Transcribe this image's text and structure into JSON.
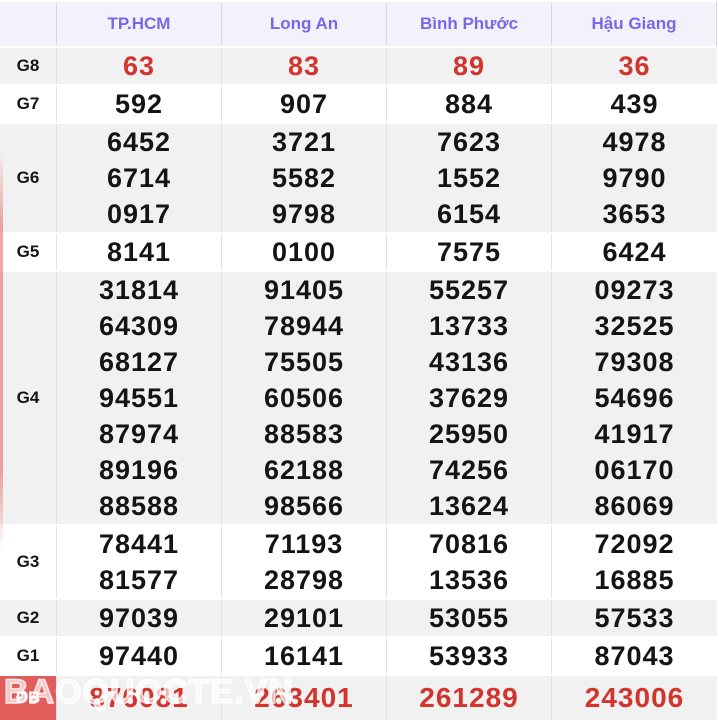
{
  "table": {
    "columns": [
      "TP.HCM",
      "Long An",
      "Bình Phước",
      "Hậu Giang"
    ],
    "rows": [
      {
        "id": "g8",
        "label": "G8",
        "bg": "gray",
        "color": "red",
        "special": false,
        "values": [
          [
            "63"
          ],
          [
            "83"
          ],
          [
            "89"
          ],
          [
            "36"
          ]
        ]
      },
      {
        "id": "g7",
        "label": "G7",
        "bg": "white",
        "color": "black",
        "special": false,
        "values": [
          [
            "592"
          ],
          [
            "907"
          ],
          [
            "884"
          ],
          [
            "439"
          ]
        ]
      },
      {
        "id": "g6",
        "label": "G6",
        "bg": "gray",
        "color": "black",
        "special": false,
        "values": [
          [
            "6452",
            "6714",
            "0917"
          ],
          [
            "3721",
            "5582",
            "9798"
          ],
          [
            "7623",
            "1552",
            "6154"
          ],
          [
            "4978",
            "9790",
            "3653"
          ]
        ]
      },
      {
        "id": "g5",
        "label": "G5",
        "bg": "white",
        "color": "black",
        "special": false,
        "values": [
          [
            "8141"
          ],
          [
            "0100"
          ],
          [
            "7575"
          ],
          [
            "6424"
          ]
        ]
      },
      {
        "id": "g4",
        "label": "G4",
        "bg": "gray",
        "color": "black",
        "special": false,
        "values": [
          [
            "31814",
            "64309",
            "68127",
            "94551",
            "87974",
            "89196",
            "88588"
          ],
          [
            "91405",
            "78944",
            "75505",
            "60506",
            "88583",
            "62188",
            "98566"
          ],
          [
            "55257",
            "13733",
            "43136",
            "37629",
            "25950",
            "74256",
            "13624"
          ],
          [
            "09273",
            "32525",
            "79308",
            "54696",
            "41917",
            "06170",
            "86069"
          ]
        ]
      },
      {
        "id": "g3",
        "label": "G3",
        "bg": "white",
        "color": "black",
        "special": false,
        "values": [
          [
            "78441",
            "81577"
          ],
          [
            "71193",
            "28798"
          ],
          [
            "70816",
            "13536"
          ],
          [
            "72092",
            "16885"
          ]
        ]
      },
      {
        "id": "g2",
        "label": "G2",
        "bg": "gray",
        "color": "black",
        "special": false,
        "values": [
          [
            "97039"
          ],
          [
            "29101"
          ],
          [
            "53055"
          ],
          [
            "57533"
          ]
        ]
      },
      {
        "id": "g1",
        "label": "G1",
        "bg": "white",
        "color": "black",
        "special": false,
        "values": [
          [
            "97440"
          ],
          [
            "16141"
          ],
          [
            "53933"
          ],
          [
            "87043"
          ]
        ]
      },
      {
        "id": "db",
        "label": "ĐB",
        "bg": "gray",
        "color": "red",
        "special": true,
        "values": [
          [
            "876081"
          ],
          [
            "263401"
          ],
          [
            "261289"
          ],
          [
            "243006"
          ]
        ]
      }
    ]
  },
  "watermark": {
    "text": "BAOQUOCTE.VN"
  },
  "colors": {
    "header_bg": "#f5f1fb",
    "header_text": "#7668e8",
    "row_gray": "#f1f1f1",
    "row_white": "#ffffff",
    "cell_border": "#e2e2e2",
    "red_number": "#d2342e",
    "special_label_bg": "#e15d5b",
    "number_text": "#141414"
  }
}
